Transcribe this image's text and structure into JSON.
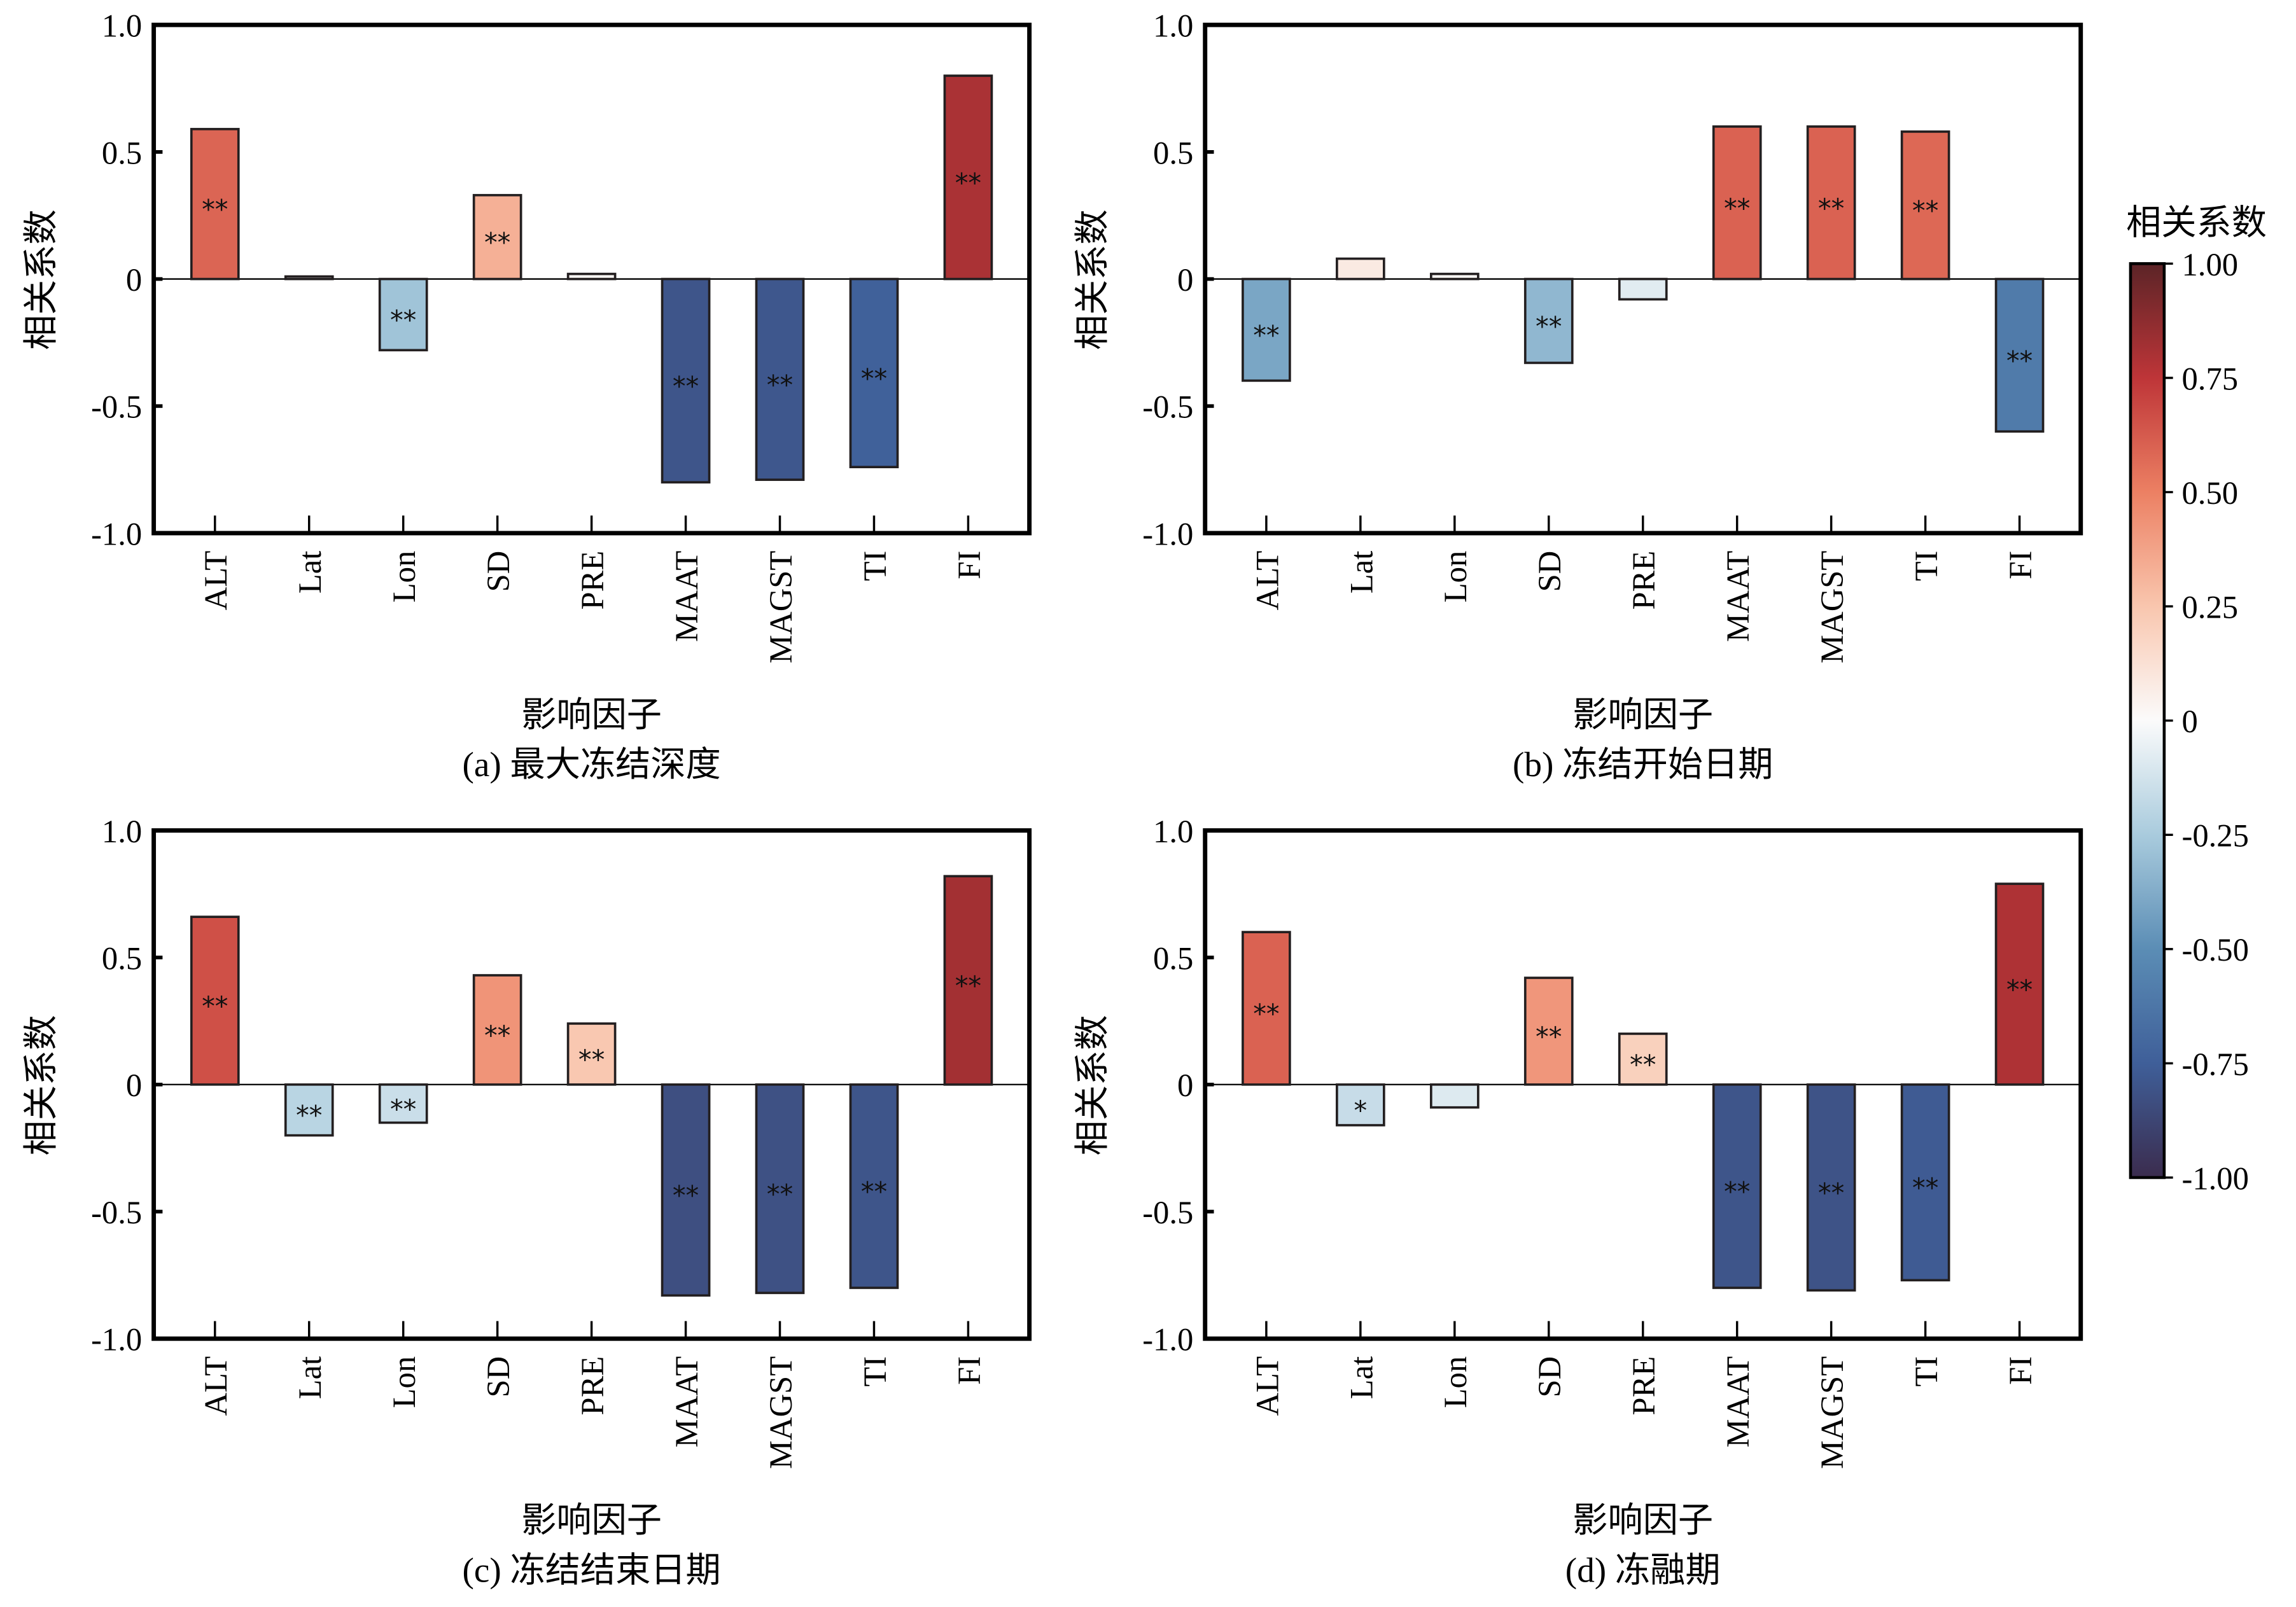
{
  "chart_data": [
    {
      "type": "bar",
      "panel": "a",
      "caption": "(a) 最大冻结深度",
      "xlabel": "影响因子",
      "ylabel": "相关系数",
      "ylim": [
        -1.0,
        1.0
      ],
      "yticks": [
        "1.0",
        "0.5",
        "0",
        "-0.5",
        "-1.0"
      ],
      "yticks_values": [
        1.0,
        0.5,
        0,
        -0.5,
        -1.0
      ],
      "categories": [
        "ALT",
        "Lat",
        "Lon",
        "SD",
        "PRE",
        "MAAT",
        "MAGST",
        "TI",
        "FI"
      ],
      "values": [
        0.59,
        0.01,
        -0.28,
        0.33,
        0.02,
        -0.8,
        -0.79,
        -0.74,
        0.8
      ],
      "significance": [
        "**",
        "",
        "**",
        "**",
        "",
        "**",
        "**",
        "**",
        "**"
      ]
    },
    {
      "type": "bar",
      "panel": "b",
      "caption": "(b) 冻结开始日期",
      "xlabel": "影响因子",
      "ylabel": "相关系数",
      "ylim": [
        -1.0,
        1.0
      ],
      "yticks": [
        "1.0",
        "0.5",
        "0",
        "-0.5",
        "-1.0"
      ],
      "yticks_values": [
        1.0,
        0.5,
        0,
        -0.5,
        -1.0
      ],
      "categories": [
        "ALT",
        "Lat",
        "Lon",
        "SD",
        "PRE",
        "MAAT",
        "MAGST",
        "TI",
        "FI"
      ],
      "values": [
        -0.4,
        0.08,
        0.02,
        -0.33,
        -0.08,
        0.6,
        0.6,
        0.58,
        -0.6
      ],
      "significance": [
        "**",
        "",
        "",
        "**",
        "",
        "**",
        "**",
        "**",
        "**"
      ]
    },
    {
      "type": "bar",
      "panel": "c",
      "caption": "(c) 冻结结束日期",
      "xlabel": "影响因子",
      "ylabel": "相关系数",
      "ylim": [
        -1.0,
        1.0
      ],
      "yticks": [
        "1.0",
        "0.5",
        "0",
        "-0.5",
        "-1.0"
      ],
      "yticks_values": [
        1.0,
        0.5,
        0,
        -0.5,
        -1.0
      ],
      "categories": [
        "ALT",
        "Lat",
        "Lon",
        "SD",
        "PRE",
        "MAAT",
        "MAGST",
        "TI",
        "FI"
      ],
      "values": [
        0.66,
        -0.2,
        -0.15,
        0.43,
        0.24,
        -0.83,
        -0.82,
        -0.8,
        0.82
      ],
      "significance": [
        "**",
        "**",
        "**",
        "**",
        "**",
        "**",
        "**",
        "**",
        "**"
      ]
    },
    {
      "type": "bar",
      "panel": "d",
      "caption": "(d) 冻融期",
      "xlabel": "影响因子",
      "ylabel": "相关系数",
      "ylim": [
        -1.0,
        1.0
      ],
      "yticks": [
        "1.0",
        "0.5",
        "0",
        "-0.5",
        "-1.0"
      ],
      "yticks_values": [
        1.0,
        0.5,
        0,
        -0.5,
        -1.0
      ],
      "categories": [
        "ALT",
        "Lat",
        "Lon",
        "SD",
        "PRE",
        "MAAT",
        "MAGST",
        "TI",
        "FI"
      ],
      "values": [
        0.6,
        -0.16,
        -0.09,
        0.42,
        0.2,
        -0.8,
        -0.81,
        -0.77,
        0.79
      ],
      "significance": [
        "**",
        "*",
        "",
        "**",
        "**",
        "**",
        "**",
        "**",
        "**"
      ]
    }
  ],
  "colorbar": {
    "title": "相关系数",
    "range": [
      -1.0,
      1.0
    ],
    "ticks": [
      "1.00",
      "0.75",
      "0.50",
      "0.25",
      "0",
      "-0.25",
      "-0.50",
      "-0.75",
      "-1.00"
    ],
    "tick_values": [
      1.0,
      0.75,
      0.5,
      0.25,
      0,
      -0.25,
      -0.5,
      -0.75,
      -1.0
    ],
    "colormap": "RdBu_r",
    "color_stops": [
      {
        "value": -1.0,
        "color": "#3b2c4e"
      },
      {
        "value": -0.75,
        "color": "#3f5f99"
      },
      {
        "value": -0.5,
        "color": "#5b8db5"
      },
      {
        "value": -0.25,
        "color": "#a9cbdd"
      },
      {
        "value": 0.0,
        "color": "#fbfbfb"
      },
      {
        "value": 0.25,
        "color": "#f9c6ae"
      },
      {
        "value": 0.5,
        "color": "#ec8063"
      },
      {
        "value": 0.75,
        "color": "#be3538"
      },
      {
        "value": 1.0,
        "color": "#5c2427"
      }
    ]
  }
}
